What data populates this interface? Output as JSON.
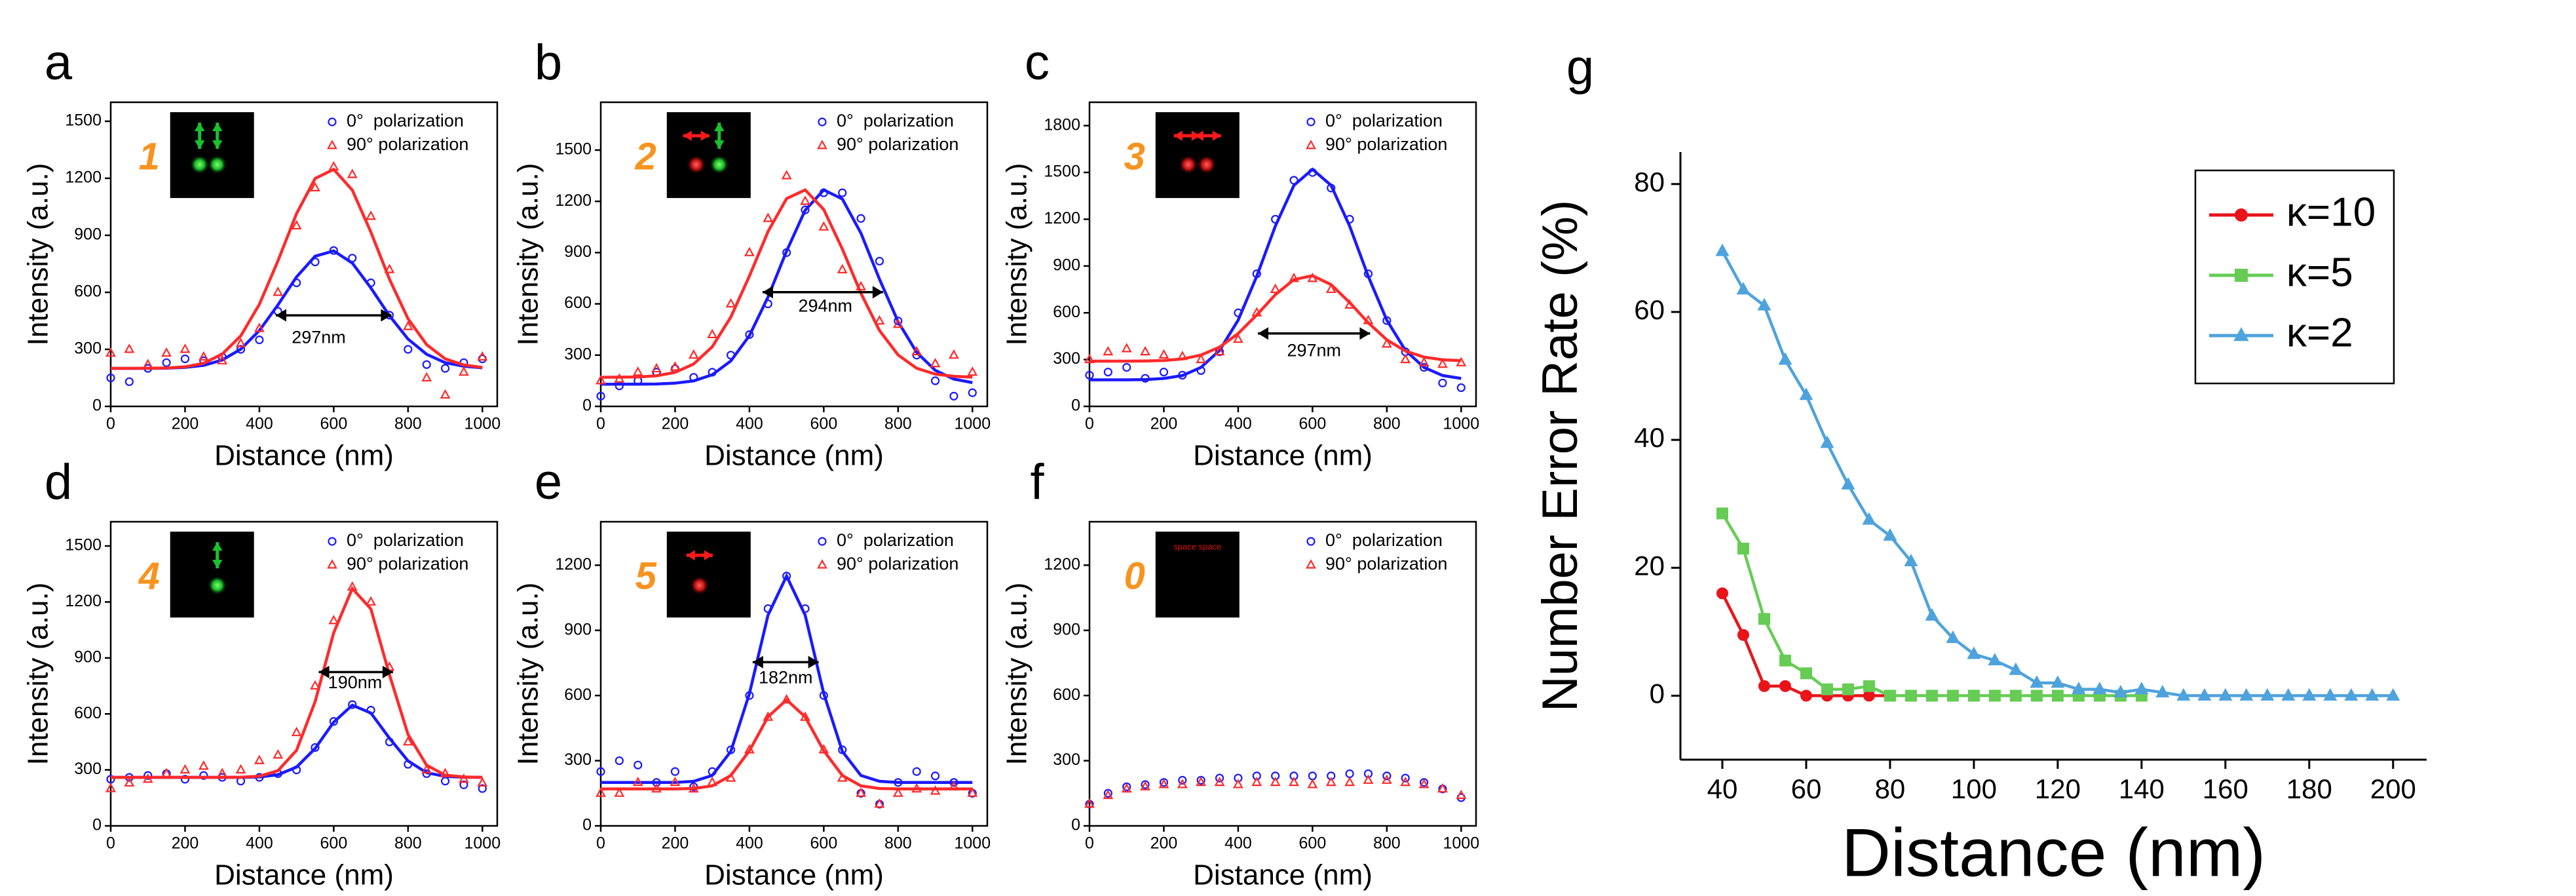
{
  "chart_data": [
    {
      "type": "scatter",
      "label": "a",
      "inset_label": "1",
      "annotation": "297nm",
      "xlabel": "Distance (nm)",
      "ylabel": "Intensity (a.u.)",
      "x": [
        0,
        50,
        100,
        150,
        200,
        250,
        300,
        350,
        400,
        450,
        500,
        550,
        600,
        650,
        700,
        750,
        800,
        850,
        900,
        950,
        1000
      ],
      "xlim": [
        0,
        1040
      ],
      "ylim": [
        0,
        1600
      ],
      "xticks": [
        0,
        200,
        400,
        600,
        800,
        1000
      ],
      "yticks": [
        0,
        300,
        600,
        900,
        1200,
        1500
      ],
      "series": [
        {
          "name": "0°  polarization",
          "color": "#1a1aff",
          "marker": "circle",
          "values": [
            150,
            130,
            200,
            230,
            250,
            240,
            260,
            300,
            350,
            500,
            650,
            760,
            820,
            780,
            650,
            480,
            300,
            220,
            200,
            230,
            250
          ],
          "fit": [
            200,
            200,
            200,
            201,
            205,
            216,
            244,
            301,
            399,
            534,
            681,
            790,
            818,
            754,
            623,
            477,
            354,
            274,
            230,
            211,
            203
          ]
        },
        {
          "name": "90° polarization",
          "color": "#ff2a2a",
          "marker": "triangle",
          "values": [
            280,
            300,
            220,
            280,
            300,
            260,
            240,
            330,
            410,
            600,
            950,
            1150,
            1260,
            1220,
            1000,
            720,
            420,
            150,
            60,
            180,
            260
          ],
          "fit": [
            200,
            200,
            201,
            202,
            208,
            227,
            275,
            371,
            537,
            766,
            1014,
            1199,
            1247,
            1138,
            917,
            669,
            461,
            325,
            250,
            218,
            205
          ]
        }
      ]
    },
    {
      "type": "scatter",
      "label": "b",
      "inset_label": "2",
      "annotation": "294nm",
      "xlabel": "Distance (nm)",
      "ylabel": "Intensity (a.u.)",
      "x": [
        0,
        50,
        100,
        150,
        200,
        250,
        300,
        350,
        400,
        450,
        500,
        550,
        600,
        650,
        700,
        750,
        800,
        850,
        900,
        950,
        1000
      ],
      "xlim": [
        0,
        1040
      ],
      "ylim": [
        0,
        1780
      ],
      "xticks": [
        0,
        200,
        400,
        600,
        800,
        1000
      ],
      "yticks": [
        0,
        300,
        600,
        900,
        1200,
        1500
      ],
      "series": [
        {
          "name": "0°  polarization",
          "color": "#1a1aff",
          "marker": "circle",
          "values": [
            60,
            120,
            150,
            200,
            220,
            170,
            200,
            300,
            420,
            600,
            900,
            1150,
            1250,
            1250,
            1100,
            850,
            500,
            300,
            150,
            60,
            80
          ],
          "fit": [
            130,
            130,
            130,
            131,
            136,
            149,
            185,
            266,
            414,
            640,
            909,
            1148,
            1267,
            1214,
            1014,
            744,
            496,
            316,
            211,
            160,
            139
          ]
        },
        {
          "name": "90° polarization",
          "color": "#ff2a2a",
          "marker": "triangle",
          "values": [
            150,
            160,
            200,
            220,
            230,
            300,
            420,
            600,
            900,
            1100,
            1350,
            1200,
            1050,
            800,
            700,
            500,
            480,
            320,
            250,
            300,
            200
          ],
          "fit": [
            170,
            171,
            172,
            179,
            199,
            248,
            349,
            523,
            763,
            1023,
            1216,
            1267,
            1152,
            921,
            662,
            444,
            301,
            223,
            189,
            176,
            171
          ]
        }
      ]
    },
    {
      "type": "scatter",
      "label": "c",
      "inset_label": "3",
      "annotation": "297nm",
      "xlabel": "Distance (nm)",
      "ylabel": "Intensity (a.u.)",
      "x": [
        0,
        50,
        100,
        150,
        200,
        250,
        300,
        350,
        400,
        450,
        500,
        550,
        600,
        650,
        700,
        750,
        800,
        850,
        900,
        950,
        1000
      ],
      "xlim": [
        0,
        1040
      ],
      "ylim": [
        0,
        1950
      ],
      "xticks": [
        0,
        200,
        400,
        600,
        800,
        1000
      ],
      "yticks": [
        0,
        300,
        600,
        900,
        1200,
        1500,
        1800
      ],
      "series": [
        {
          "name": "0°  polarization",
          "color": "#1a1aff",
          "marker": "circle",
          "values": [
            200,
            220,
            250,
            180,
            220,
            200,
            230,
            350,
            600,
            850,
            1200,
            1450,
            1500,
            1400,
            1200,
            850,
            550,
            350,
            250,
            150,
            120
          ],
          "fit": [
            170,
            170,
            170,
            172,
            179,
            198,
            250,
            359,
            553,
            834,
            1156,
            1417,
            1520,
            1417,
            1156,
            834,
            553,
            359,
            250,
            198,
            179
          ]
        },
        {
          "name": "90° polarization",
          "color": "#ff2a2a",
          "marker": "triangle",
          "values": [
            300,
            350,
            370,
            350,
            330,
            320,
            300,
            350,
            430,
            600,
            750,
            820,
            820,
            750,
            650,
            550,
            400,
            300,
            280,
            270,
            280
          ],
          "fit": [
            290,
            290,
            290,
            291,
            294,
            304,
            329,
            380,
            467,
            586,
            716,
            813,
            838,
            781,
            666,
            536,
            427,
            355,
            316,
            299,
            293
          ]
        }
      ]
    },
    {
      "type": "scatter",
      "label": "d",
      "inset_label": "4",
      "annotation": "190nm",
      "xlabel": "Distance (nm)",
      "ylabel": "Intensity (a.u.)",
      "x": [
        0,
        50,
        100,
        150,
        200,
        250,
        300,
        350,
        400,
        450,
        500,
        550,
        600,
        650,
        700,
        750,
        800,
        850,
        900,
        950,
        1000
      ],
      "xlim": [
        0,
        1040
      ],
      "ylim": [
        0,
        1630
      ],
      "xticks": [
        0,
        200,
        400,
        600,
        800,
        1000
      ],
      "yticks": [
        0,
        300,
        600,
        900,
        1200,
        1500
      ],
      "series": [
        {
          "name": "0°  polarization",
          "color": "#1a1aff",
          "marker": "circle",
          "values": [
            250,
            260,
            270,
            280,
            250,
            270,
            260,
            240,
            260,
            280,
            300,
            420,
            560,
            650,
            620,
            450,
            330,
            280,
            240,
            220,
            200
          ],
          "fit": [
            260,
            260,
            260,
            260,
            260,
            260,
            260,
            260,
            262,
            274,
            315,
            415,
            556,
            647,
            605,
            470,
            348,
            285,
            265,
            261,
            260
          ]
        },
        {
          "name": "90° polarization",
          "color": "#ff2a2a",
          "marker": "triangle",
          "values": [
            200,
            230,
            250,
            280,
            300,
            320,
            280,
            300,
            350,
            380,
            500,
            750,
            1100,
            1280,
            1200,
            850,
            450,
            300,
            280,
            250,
            230
          ],
          "fit": [
            260,
            260,
            260,
            260,
            260,
            260,
            260,
            261,
            266,
            296,
            405,
            666,
            1035,
            1272,
            1163,
            810,
            490,
            325,
            272,
            262,
            260
          ]
        }
      ]
    },
    {
      "type": "scatter",
      "label": "e",
      "inset_label": "5",
      "annotation": "182nm",
      "xlabel": "Distance (nm)",
      "ylabel": "Intensity (a.u.)",
      "x": [
        0,
        50,
        100,
        150,
        200,
        250,
        300,
        350,
        400,
        450,
        500,
        550,
        600,
        650,
        700,
        750,
        800,
        850,
        900,
        950,
        1000
      ],
      "xlim": [
        0,
        1040
      ],
      "ylim": [
        0,
        1400
      ],
      "xticks": [
        0,
        200,
        400,
        600,
        800,
        1000
      ],
      "yticks": [
        0,
        300,
        600,
        900,
        1200
      ],
      "series": [
        {
          "name": "0°  polarization",
          "color": "#1a1aff",
          "marker": "circle",
          "values": [
            250,
            300,
            280,
            200,
            250,
            180,
            250,
            350,
            600,
            1000,
            1150,
            1000,
            600,
            350,
            150,
            100,
            200,
            250,
            230,
            200,
            150
          ],
          "fit": [
            200,
            200,
            200,
            200,
            200,
            205,
            232,
            343,
            609,
            970,
            1150,
            970,
            609,
            343,
            232,
            205,
            200,
            200,
            200,
            200,
            200
          ]
        },
        {
          "name": "90° polarization",
          "color": "#ff2a2a",
          "marker": "triangle",
          "values": [
            150,
            150,
            200,
            170,
            200,
            170,
            200,
            220,
            350,
            500,
            580,
            500,
            350,
            220,
            150,
            100,
            150,
            170,
            160,
            180,
            150
          ],
          "fit": [
            170,
            170,
            170,
            170,
            170,
            172,
            184,
            232,
            346,
            502,
            580,
            502,
            346,
            232,
            184,
            172,
            170,
            170,
            170,
            170,
            170
          ]
        }
      ]
    },
    {
      "type": "scatter",
      "label": "f",
      "inset_label": "0",
      "inset_text": "space space",
      "xlabel": "Distance (nm)",
      "ylabel": "Intensity (a.u.)",
      "x": [
        0,
        50,
        100,
        150,
        200,
        250,
        300,
        350,
        400,
        450,
        500,
        550,
        600,
        650,
        700,
        750,
        800,
        850,
        900,
        950,
        1000
      ],
      "xlim": [
        0,
        1040
      ],
      "ylim": [
        0,
        1400
      ],
      "xticks": [
        0,
        200,
        400,
        600,
        800,
        1000
      ],
      "yticks": [
        0,
        300,
        600,
        900,
        1200
      ],
      "series": [
        {
          "name": "0°  polarization",
          "color": "#1a1aff",
          "marker": "circle",
          "values": [
            100,
            150,
            180,
            190,
            200,
            210,
            210,
            220,
            220,
            230,
            230,
            230,
            230,
            230,
            240,
            240,
            230,
            220,
            200,
            170,
            130
          ]
        },
        {
          "name": "90° polarization",
          "color": "#ff2a2a",
          "marker": "triangle",
          "values": [
            100,
            140,
            170,
            180,
            190,
            190,
            200,
            200,
            190,
            200,
            200,
            200,
            190,
            200,
            200,
            210,
            210,
            200,
            190,
            170,
            140
          ]
        }
      ]
    },
    {
      "type": "line",
      "label": "g",
      "xlabel": "Distance (nm)",
      "ylabel": "Number Error Rate (%)",
      "x": [
        40,
        45,
        50,
        55,
        60,
        65,
        70,
        75,
        80,
        85,
        90,
        95,
        100,
        105,
        110,
        115,
        120,
        125,
        130,
        135,
        140,
        145,
        150,
        155,
        160,
        165,
        170,
        175,
        180,
        185,
        190,
        195,
        200
      ],
      "xlim": [
        30,
        208
      ],
      "ylim": [
        -10,
        85
      ],
      "xticks": [
        40,
        60,
        80,
        100,
        120,
        140,
        160,
        180,
        200
      ],
      "yticks": [
        0,
        20,
        40,
        60,
        80
      ],
      "series": [
        {
          "name": "κ=10",
          "color": "#e8141a",
          "marker": "circle",
          "values": [
            16,
            9.5,
            1.5,
            1.5,
            0,
            0,
            0,
            0,
            0,
            null,
            null,
            null,
            null,
            null,
            null,
            null,
            null,
            null,
            null,
            null,
            null,
            null,
            null,
            null,
            null,
            null,
            null,
            null,
            null,
            null,
            null,
            null,
            null
          ]
        },
        {
          "name": "κ=5",
          "color": "#66cc55",
          "marker": "square",
          "values": [
            28.5,
            23,
            12,
            5.5,
            3.5,
            1,
            1,
            1.5,
            0,
            0,
            0,
            0,
            0,
            0,
            0,
            0,
            0,
            0,
            0,
            0,
            0,
            null,
            null,
            null,
            null,
            null,
            null,
            null,
            null,
            null,
            null,
            null,
            null
          ]
        },
        {
          "name": "κ=2",
          "color": "#4ea3dc",
          "marker": "triangle",
          "values": [
            69.5,
            63.5,
            61,
            52.5,
            47,
            39.5,
            33,
            27.5,
            25,
            21,
            12.5,
            9,
            6.5,
            5.5,
            4,
            2,
            2,
            1,
            1,
            0.5,
            1,
            0.5,
            0,
            0,
            0,
            0,
            0,
            0,
            0,
            0,
            0,
            0,
            0
          ]
        }
      ]
    }
  ]
}
